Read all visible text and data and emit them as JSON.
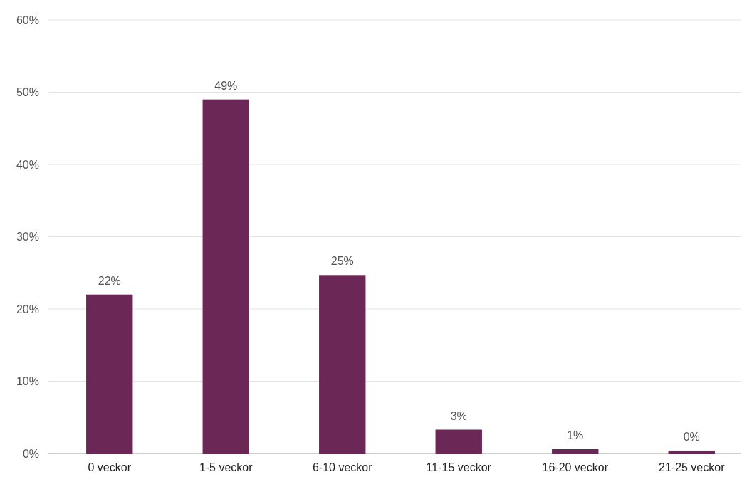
{
  "chart_data": {
    "type": "bar",
    "categories": [
      "0 veckor",
      "1-5 veckor",
      "6-10 veckor",
      "11-15 veckor",
      "16-20 veckor",
      "21-25 veckor"
    ],
    "values": [
      22,
      49,
      24.7,
      3.3,
      0.6,
      0.4
    ],
    "value_labels": [
      "22%",
      "49%",
      "25%",
      "3%",
      "1%",
      "0%"
    ],
    "color": "#6b2856",
    "ylim": [
      0,
      60
    ],
    "yticks": [
      {
        "value": 0,
        "label": "0%"
      },
      {
        "value": 10,
        "label": "10%"
      },
      {
        "value": 20,
        "label": "20%"
      },
      {
        "value": 30,
        "label": "30%"
      },
      {
        "value": 40,
        "label": "40%"
      },
      {
        "value": 50,
        "label": "50%"
      },
      {
        "value": 60,
        "label": "60%"
      }
    ],
    "grid": "y"
  }
}
